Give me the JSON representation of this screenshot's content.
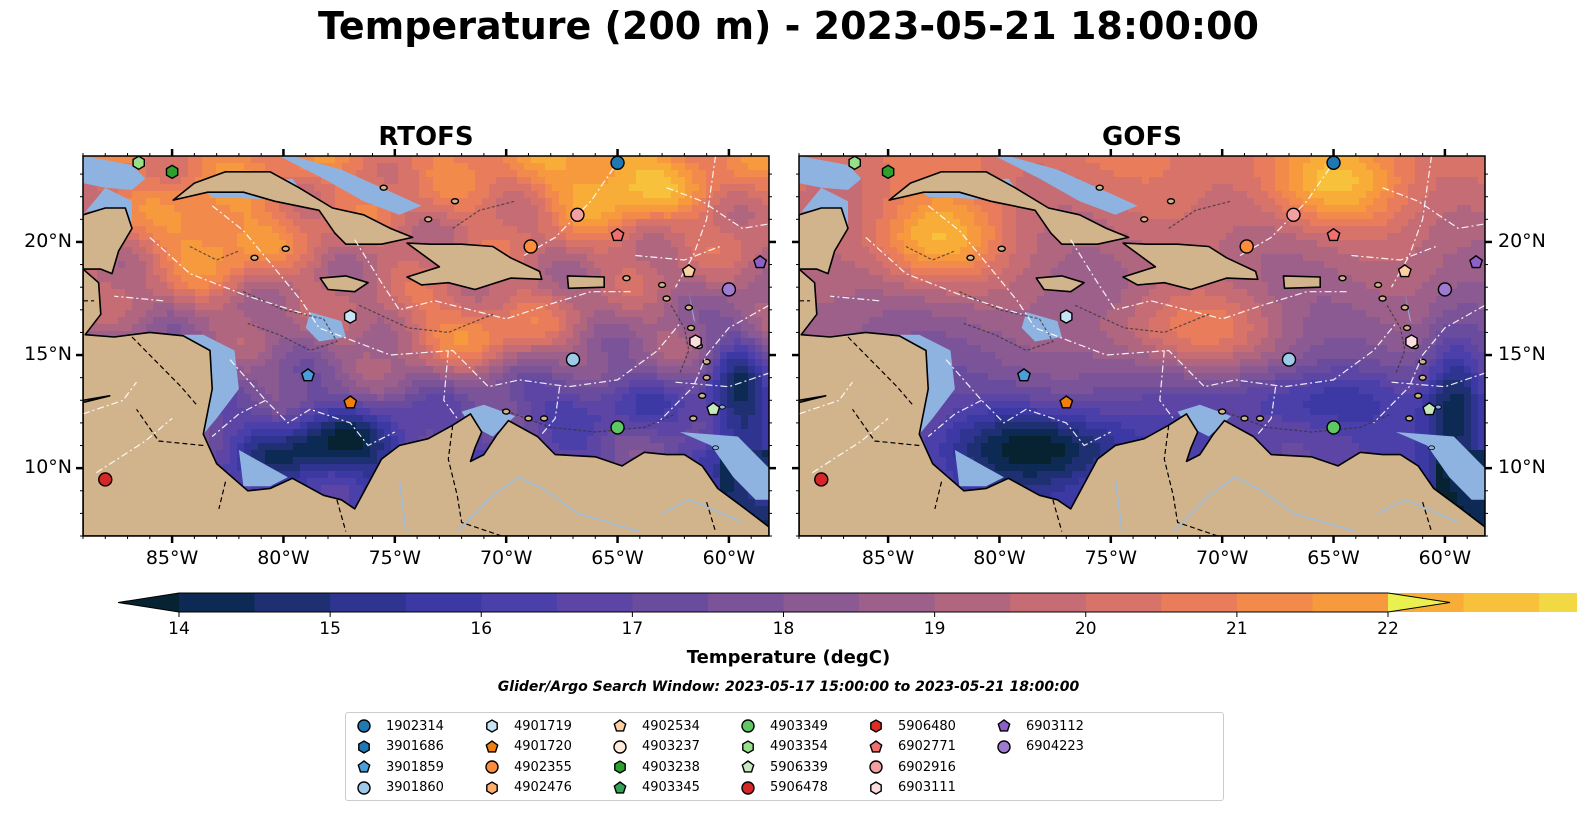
{
  "title": "Temperature (200 m) - 2023-05-21 18:00:00",
  "panels": [
    {
      "title": "RTOFS",
      "model": "rtofs"
    },
    {
      "title": "GOFS",
      "model": "gofs"
    }
  ],
  "lon_ticks": [
    "85°W",
    "80°W",
    "75°W",
    "70°W",
    "65°W",
    "60°W"
  ],
  "lat_ticks": [
    "20°N",
    "15°N",
    "10°N"
  ],
  "colorbar": {
    "label": "Temperature (degC)",
    "ticks": [
      "14",
      "15",
      "16",
      "17",
      "18",
      "19",
      "20",
      "21",
      "22"
    ],
    "min": 14,
    "max": 22,
    "step": 0.5,
    "colors": [
      "#072231",
      "#0d2a55",
      "#1e2f72",
      "#2e3490",
      "#3d39a4",
      "#4b3fa9",
      "#5c45a4",
      "#6a4c9f",
      "#7a5399",
      "#8b5a93",
      "#9d608b",
      "#b16680",
      "#c56c74",
      "#d87369",
      "#e87c5b",
      "#f28a4b",
      "#f79a3e",
      "#f8ad38",
      "#f7c13b",
      "#f2d944",
      "#e8f14f"
    ]
  },
  "search_window": "Glider/Argo Search Window: 2023-05-17 15:00:00 to 2023-05-21 18:00:00",
  "map_colors": {
    "land": "#d2b48c",
    "shelf": "#8fb3e0",
    "river": "#9fbcd9"
  },
  "legend": [
    {
      "id": "1902314",
      "marker": "circle",
      "color": "#1f77b4"
    },
    {
      "id": "3901686",
      "marker": "hexagon",
      "color": "#1f77b4"
    },
    {
      "id": "3901859",
      "marker": "pentagon",
      "color": "#4a9fd8"
    },
    {
      "id": "3901860",
      "marker": "circle",
      "color": "#9ecae9"
    },
    {
      "id": "4901719",
      "marker": "hexagon",
      "color": "#c6e4f5"
    },
    {
      "id": "4901720",
      "marker": "pentagon",
      "color": "#f07f0e"
    },
    {
      "id": "4902355",
      "marker": "circle",
      "color": "#fd8d3c"
    },
    {
      "id": "4902476",
      "marker": "hexagon",
      "color": "#fdae6b"
    },
    {
      "id": "4902534",
      "marker": "pentagon",
      "color": "#fdd0a2"
    },
    {
      "id": "4903237",
      "marker": "circle",
      "color": "#feeadb"
    },
    {
      "id": "4903238",
      "marker": "hexagon",
      "color": "#2ca02c"
    },
    {
      "id": "4903345",
      "marker": "pentagon",
      "color": "#31a354"
    },
    {
      "id": "4903349",
      "marker": "circle",
      "color": "#5ec962"
    },
    {
      "id": "4903354",
      "marker": "hexagon",
      "color": "#98df8a"
    },
    {
      "id": "5906339",
      "marker": "pentagon",
      "color": "#c7e9c0"
    },
    {
      "id": "5906478",
      "marker": "circle",
      "color": "#d62728"
    },
    {
      "id": "5906480",
      "marker": "hexagon",
      "color": "#de2d26"
    },
    {
      "id": "6902771",
      "marker": "pentagon",
      "color": "#f0706e"
    },
    {
      "id": "6902916",
      "marker": "circle",
      "color": "#f4a0a0"
    },
    {
      "id": "6903111",
      "marker": "hexagon",
      "color": "#fcdede"
    },
    {
      "id": "6903112",
      "marker": "pentagon",
      "color": "#8d5fc8"
    },
    {
      "id": "6904223",
      "marker": "circle",
      "color": "#9e7bd0"
    }
  ],
  "floats": [
    {
      "id": "4903354",
      "lon": -86.5,
      "lat": 23.5,
      "rtofs": true,
      "gofs": true
    },
    {
      "id": "4903238",
      "lon": -85.0,
      "lat": 23.1,
      "rtofs": true,
      "gofs": true
    },
    {
      "id": "1902314",
      "lon": -65.0,
      "lat": 23.5,
      "rtofs": true,
      "gofs": true
    },
    {
      "id": "6902916",
      "lon": -66.8,
      "lat": 21.2,
      "rtofs": true,
      "gofs": true
    },
    {
      "id": "6902771",
      "lon": -65.0,
      "lat": 20.3,
      "rtofs": true,
      "gofs": true
    },
    {
      "id": "4902355",
      "lon": -68.9,
      "lat": 19.8,
      "rtofs": true,
      "gofs": true
    },
    {
      "id": "4902534",
      "lon": -61.8,
      "lat": 18.7,
      "rtofs": true,
      "gofs": true
    },
    {
      "id": "6903112",
      "lon": -58.6,
      "lat": 19.1,
      "rtofs": true,
      "gofs": true
    },
    {
      "id": "6904223",
      "lon": -60.0,
      "lat": 17.9,
      "rtofs": true,
      "gofs": true
    },
    {
      "id": "4901719",
      "lon": -77.0,
      "lat": 16.7,
      "rtofs": true,
      "gofs": true
    },
    {
      "id": "6903111",
      "lon": -61.5,
      "lat": 15.6,
      "rtofs": true,
      "gofs": true
    },
    {
      "id": "3901860",
      "lon": -67.0,
      "lat": 14.8,
      "rtofs": true,
      "gofs": true
    },
    {
      "id": "3901859",
      "lon": -78.9,
      "lat": 14.1,
      "rtofs": true,
      "gofs": true
    },
    {
      "id": "4901720",
      "lon": -77.0,
      "lat": 12.9,
      "rtofs": true,
      "gofs": true
    },
    {
      "id": "5906339",
      "lon": -60.7,
      "lat": 12.6,
      "rtofs": true,
      "gofs": true
    },
    {
      "id": "4903349",
      "lon": -65.0,
      "lat": 11.8,
      "rtofs": true,
      "gofs": true
    },
    {
      "id": "5906478",
      "lon": -88.0,
      "lat": 9.5,
      "rtofs": true,
      "gofs": true
    }
  ]
}
